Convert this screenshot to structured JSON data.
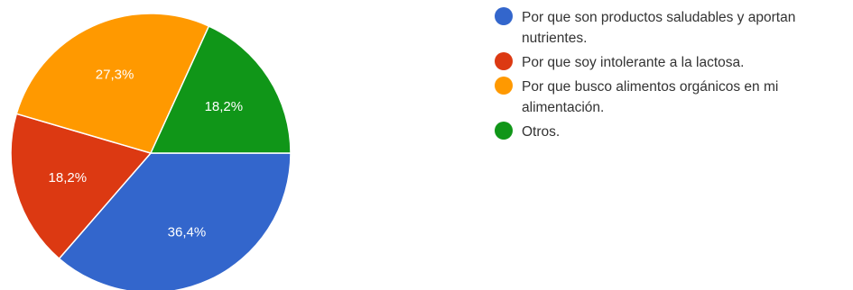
{
  "chart_data": {
    "type": "pie",
    "slices": [
      {
        "label": "Por que son productos saludables y aportan nutrientes.",
        "value": 36.4,
        "value_label": "36,4%",
        "color": "#3366cc"
      },
      {
        "label": "Por que soy intolerante a la lactosa.",
        "value": 18.2,
        "value_label": "18,2%",
        "color": "#dc3912"
      },
      {
        "label": "Por que busco alimentos orgánicos en mi alimentación.",
        "value": 27.3,
        "value_label": "27,3%",
        "color": "#ff9900"
      },
      {
        "label": "Otros.",
        "value": 18.2,
        "value_label": "18,2%",
        "color": "#109618"
      }
    ],
    "legend_position": "right",
    "start_direction": "east",
    "rotation": "clockwise"
  }
}
